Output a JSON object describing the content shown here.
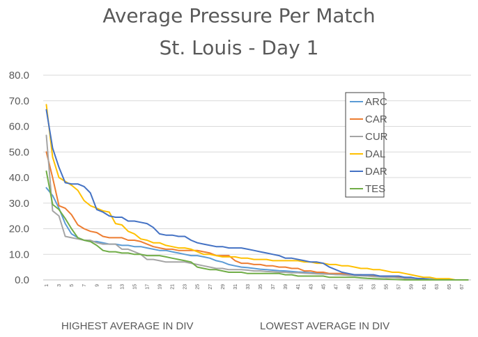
{
  "chart_data": {
    "type": "line",
    "title": "Average Pressure Per Match",
    "subtitle": "St. Louis - Day 1",
    "ylim": [
      0,
      80
    ],
    "yticks": [
      "0.0",
      "10.0",
      "20.0",
      "30.0",
      "40.0",
      "50.0",
      "60.0",
      "70.0",
      "80.0"
    ],
    "x": [
      1,
      2,
      3,
      4,
      5,
      6,
      7,
      8,
      9,
      10,
      11,
      12,
      13,
      14,
      15,
      16,
      17,
      18,
      19,
      20,
      21,
      22,
      23,
      24,
      25,
      26,
      27,
      28,
      29,
      30,
      31,
      32,
      33,
      34,
      35,
      36,
      37,
      38,
      39,
      40,
      41,
      42,
      43,
      44,
      45,
      46,
      47,
      48,
      49,
      50,
      51,
      52,
      53,
      54,
      55,
      56,
      57,
      58,
      59,
      60,
      61,
      62,
      63,
      64,
      65,
      66,
      67,
      68
    ],
    "xticks": [
      "1",
      "3",
      "5",
      "7",
      "9",
      "11",
      "13",
      "15",
      "17",
      "19",
      "21",
      "23",
      "25",
      "27",
      "29",
      "31",
      "33",
      "35",
      "37",
      "39",
      "41",
      "43",
      "45",
      "47",
      "49",
      "51",
      "53",
      "55",
      "57",
      "59",
      "61",
      "63",
      "65",
      "67"
    ],
    "grid": true,
    "legend_position": "right",
    "bottom_labels": {
      "left": "HIGHEST AVERAGE IN DIV",
      "right": "LOWEST AVERAGE IN DIV"
    },
    "series": [
      {
        "name": "ARC",
        "color": "#5b9bd5",
        "values": [
          36,
          33,
          28,
          22,
          18,
          16.5,
          15.5,
          15,
          15,
          14.5,
          14,
          14,
          13.5,
          13.5,
          13,
          13,
          12.5,
          12,
          11.5,
          11.5,
          11,
          10.5,
          10,
          9.5,
          9.5,
          9,
          8.5,
          7.5,
          7,
          6,
          5.5,
          5,
          4.8,
          4.5,
          4.2,
          4,
          3.8,
          3.6,
          3.5,
          3.3,
          3.1,
          3,
          2.8,
          2.6,
          2.5,
          2.3,
          2.1,
          2,
          1.9,
          1.8,
          1.7,
          1.6,
          1.5,
          1.4,
          1.3,
          1.2,
          1.1,
          1,
          0.8,
          0.6,
          0.5,
          0.4,
          0.3,
          0.2,
          0.1,
          0,
          0,
          0
        ]
      },
      {
        "name": "CAR",
        "color": "#ed7d31",
        "values": [
          50,
          40,
          29,
          28,
          25.5,
          21.5,
          20,
          19,
          18.5,
          17,
          16.5,
          16.5,
          16.5,
          15.5,
          15.5,
          15,
          14,
          13,
          12.5,
          12,
          12,
          11.5,
          11.5,
          11.5,
          11.5,
          11,
          10.5,
          9.5,
          9.5,
          9.5,
          7.5,
          6.5,
          6.5,
          6,
          6,
          5.5,
          5.5,
          5,
          5,
          4.5,
          4.5,
          3.5,
          3.5,
          3,
          3,
          2.5,
          2.5,
          2.5,
          2,
          2,
          2,
          1.5,
          1.5,
          1.5,
          1,
          1,
          1,
          0.5,
          0.5,
          0.5,
          0.5,
          0,
          0,
          0,
          0,
          0,
          0,
          0
        ]
      },
      {
        "name": "CUR",
        "color": "#a5a5a5",
        "values": [
          56.5,
          27,
          25,
          17,
          16.5,
          16,
          15.5,
          15.5,
          14.5,
          14,
          14,
          14,
          12,
          12,
          11,
          10,
          8,
          8,
          7.5,
          7,
          7,
          7,
          7,
          6.5,
          6,
          5.5,
          5,
          4.5,
          4.5,
          4,
          4,
          4,
          3.8,
          3.5,
          3.5,
          3.3,
          3.2,
          3,
          3,
          2.8,
          2.8,
          2.6,
          2.5,
          2.4,
          2.3,
          2.2,
          2.1,
          2,
          1.8,
          1.7,
          1.6,
          1.5,
          1.3,
          1.2,
          1,
          1,
          0.8,
          0.6,
          0.5,
          0.4,
          0.3,
          0.2,
          0.1,
          0,
          0,
          0,
          0,
          0
        ]
      },
      {
        "name": "DAL",
        "color": "#ffc000",
        "values": [
          68.5,
          48,
          40,
          38.5,
          37,
          35,
          31,
          29,
          28,
          27,
          26.5,
          22,
          21.5,
          19,
          18,
          16,
          15.5,
          14.5,
          14.5,
          13.5,
          13,
          12.5,
          12.5,
          12,
          11,
          10,
          10,
          9.5,
          9,
          9,
          9,
          8.5,
          8.5,
          8,
          8,
          8,
          7.5,
          7.5,
          7.5,
          7.5,
          7.5,
          7,
          7,
          6.5,
          6.5,
          6,
          6,
          5.5,
          5.5,
          5,
          4.5,
          4.5,
          4,
          4,
          3.5,
          3,
          3,
          2.5,
          2,
          1.5,
          1,
          1,
          0.5,
          0.5,
          0.5,
          0,
          0,
          0
        ]
      },
      {
        "name": "DAR",
        "color": "#4472c4",
        "values": [
          66.5,
          51.5,
          44,
          38,
          37.5,
          37.5,
          36.5,
          34,
          27.5,
          26.5,
          25,
          24.5,
          24.5,
          23,
          23,
          22.5,
          22,
          20.5,
          18,
          17.5,
          17.5,
          17,
          17,
          15.5,
          14.5,
          14,
          13.5,
          13,
          13,
          12.5,
          12.5,
          12.5,
          12,
          11.5,
          11,
          10.5,
          10,
          9.5,
          8.5,
          8.5,
          8,
          7.5,
          7,
          7,
          6.5,
          5,
          4,
          3,
          2.5,
          2,
          2,
          2,
          2,
          1.5,
          1.5,
          1.5,
          1.5,
          1,
          1,
          0.5,
          0.5,
          0,
          0,
          0,
          0,
          0,
          0,
          0
        ]
      },
      {
        "name": "TES",
        "color": "#70ad47",
        "values": [
          42.5,
          29.5,
          27.5,
          24,
          20,
          16.5,
          15.5,
          15,
          13.5,
          11.5,
          11,
          11,
          10.5,
          10.5,
          10,
          10,
          9.5,
          9.5,
          9.5,
          9,
          8.5,
          8,
          7.5,
          7,
          5,
          4.5,
          4,
          4,
          3.5,
          3,
          3,
          3,
          2.5,
          2.5,
          2.5,
          2.5,
          2.5,
          2.5,
          2,
          2,
          1.5,
          1.5,
          1.5,
          1.5,
          1.5,
          1,
          1,
          1,
          1,
          1,
          0.8,
          0.6,
          0.5,
          0.4,
          0.3,
          0.2,
          0.1,
          0,
          0,
          0,
          0,
          0,
          0,
          0,
          0,
          0,
          0,
          0
        ]
      }
    ]
  }
}
